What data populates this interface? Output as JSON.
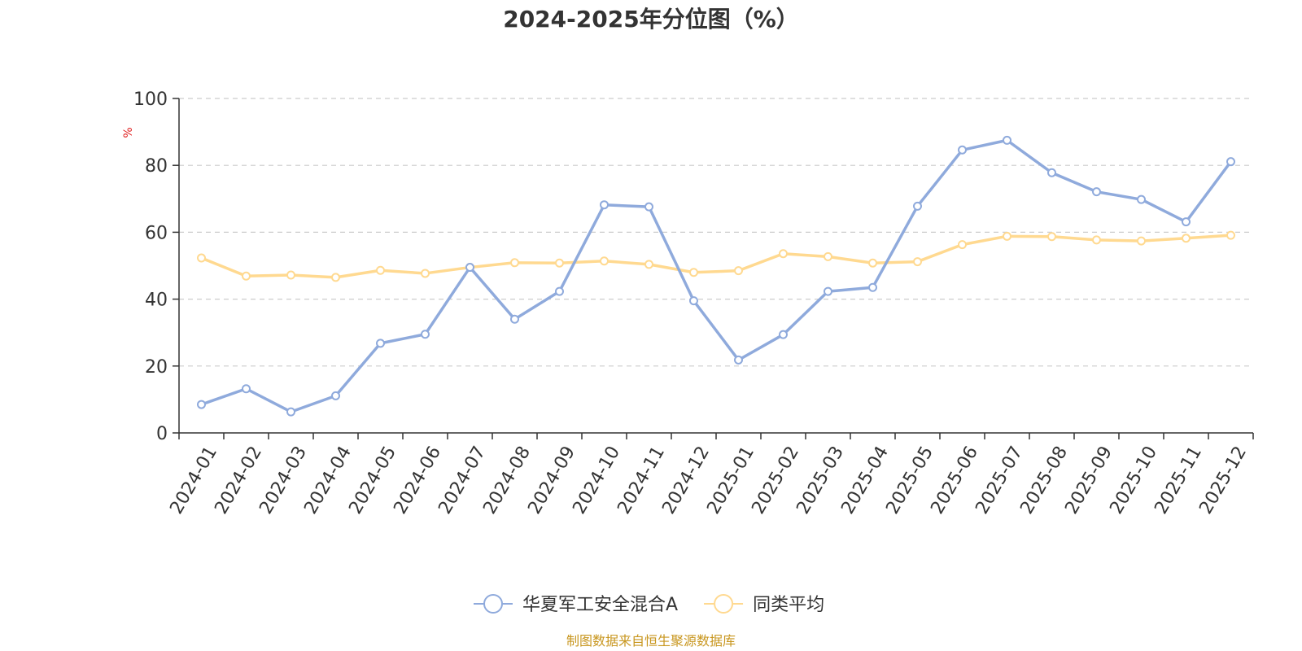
{
  "chart_data": {
    "type": "line",
    "title": "2024-2025年分位图（%）",
    "ylabel": "%",
    "xlabel": "",
    "ylim": [
      0,
      100
    ],
    "yticks": [
      0,
      20,
      40,
      60,
      80,
      100
    ],
    "grid": true,
    "legend_position": "bottom-center",
    "categories": [
      "2024-01",
      "2024-02",
      "2024-03",
      "2024-04",
      "2024-05",
      "2024-06",
      "2024-07",
      "2024-08",
      "2024-09",
      "2024-10",
      "2024-11",
      "2024-12",
      "2025-01",
      "2025-02",
      "2025-03",
      "2025-04",
      "2025-05",
      "2025-06",
      "2025-07",
      "2025-08",
      "2025-09",
      "2025-10",
      "2025-11",
      "2025-12"
    ],
    "series": [
      {
        "name": "华夏军工安全混合A",
        "color": "#8faadc",
        "values": [
          8.5,
          13.2,
          6.3,
          11.1,
          26.8,
          29.5,
          49.5,
          34.0,
          42.3,
          68.2,
          67.6,
          39.5,
          21.8,
          29.4,
          42.3,
          43.5,
          67.8,
          84.6,
          87.5,
          77.8,
          72.1,
          69.8,
          63.1,
          81.1
        ]
      },
      {
        "name": "同类平均",
        "color": "#ffd990",
        "values": [
          52.3,
          46.9,
          47.2,
          46.5,
          48.6,
          47.7,
          49.5,
          50.9,
          50.8,
          51.4,
          50.4,
          48.0,
          48.5,
          53.6,
          52.7,
          50.8,
          51.2,
          56.3,
          58.8,
          58.7,
          57.7,
          57.4,
          58.2,
          59.1
        ]
      }
    ]
  },
  "footer": {
    "source": "制图数据来自恒生聚源数据库"
  }
}
